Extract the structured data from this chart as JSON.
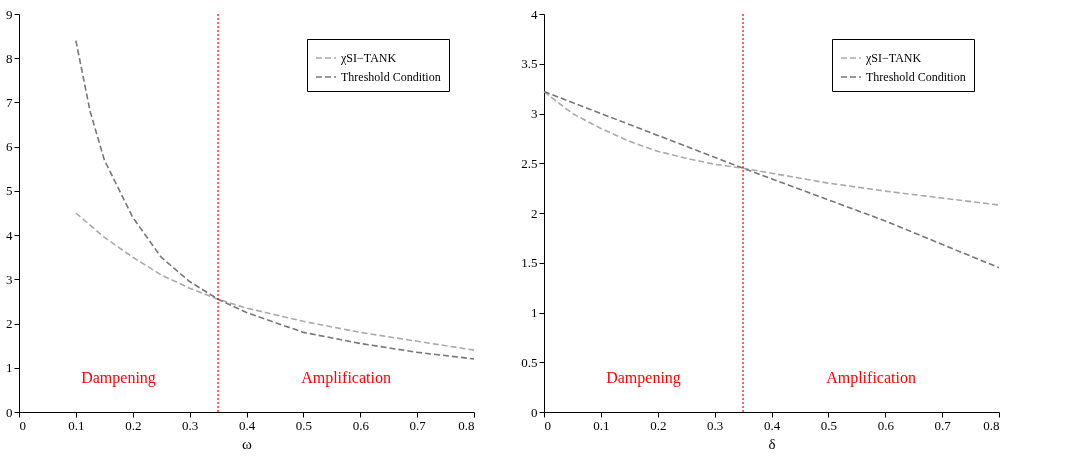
{
  "chart_data": [
    {
      "type": "line",
      "xlabel": "ω",
      "xlim": [
        0,
        0.8
      ],
      "xticks": [
        0,
        0.1,
        0.2,
        0.3,
        0.4,
        0.5,
        0.6,
        0.7,
        0.8
      ],
      "ylim": [
        0,
        9
      ],
      "yticks": [
        0,
        1,
        2,
        3,
        4,
        5,
        6,
        7,
        8,
        9
      ],
      "grid": false,
      "legend": "top right",
      "marker": "none",
      "series": [
        {
          "name": "χSI−TANK",
          "color": "#aaaaaa",
          "line_style": "dashed",
          "x": [
            0.1,
            0.15,
            0.2,
            0.25,
            0.3,
            0.35,
            0.4,
            0.5,
            0.6,
            0.7,
            0.8
          ],
          "values": [
            4.5,
            3.95,
            3.5,
            3.1,
            2.8,
            2.55,
            2.35,
            2.05,
            1.8,
            1.6,
            1.4
          ]
        },
        {
          "name": "Threshold Condition",
          "color": "#777777",
          "line_style": "dashed",
          "x": [
            0.1,
            0.125,
            0.15,
            0.2,
            0.25,
            0.3,
            0.35,
            0.4,
            0.5,
            0.6,
            0.7,
            0.8
          ],
          "values": [
            8.4,
            6.8,
            5.7,
            4.4,
            3.5,
            2.95,
            2.55,
            2.25,
            1.8,
            1.55,
            1.35,
            1.2
          ]
        }
      ],
      "ref_lines": [
        {
          "axis": "x",
          "value": 0.35,
          "color": "#ff0000",
          "line_style": "dotted"
        }
      ],
      "annotations": [
        "Dampening",
        "Amplification"
      ]
    },
    {
      "type": "line",
      "xlabel": "δ",
      "xlim": [
        0,
        0.8
      ],
      "xticks": [
        0,
        0.1,
        0.2,
        0.3,
        0.4,
        0.5,
        0.6,
        0.7,
        0.8
      ],
      "ylim": [
        0,
        4
      ],
      "yticks": [
        0,
        0.5,
        1,
        1.5,
        2,
        2.5,
        3,
        3.5,
        4
      ],
      "grid": false,
      "legend": "top right",
      "marker": "none",
      "series": [
        {
          "name": "χSI−TANK",
          "color": "#aaaaaa",
          "line_style": "dashed",
          "x": [
            0,
            0.05,
            0.1,
            0.15,
            0.2,
            0.25,
            0.3,
            0.35,
            0.4,
            0.5,
            0.6,
            0.7,
            0.8
          ],
          "values": [
            3.22,
            3.0,
            2.85,
            2.72,
            2.62,
            2.55,
            2.49,
            2.45,
            2.4,
            2.3,
            2.22,
            2.15,
            2.08
          ]
        },
        {
          "name": "Threshold Condition",
          "color": "#777777",
          "line_style": "dashed",
          "x": [
            0,
            0.2,
            0.35,
            0.6,
            0.8
          ],
          "values": [
            3.22,
            2.78,
            2.45,
            1.92,
            1.45
          ]
        }
      ],
      "ref_lines": [
        {
          "axis": "x",
          "value": 0.35,
          "color": "#ff0000",
          "line_style": "dotted"
        }
      ],
      "annotations": [
        "Dampening",
        "Amplification"
      ]
    }
  ]
}
